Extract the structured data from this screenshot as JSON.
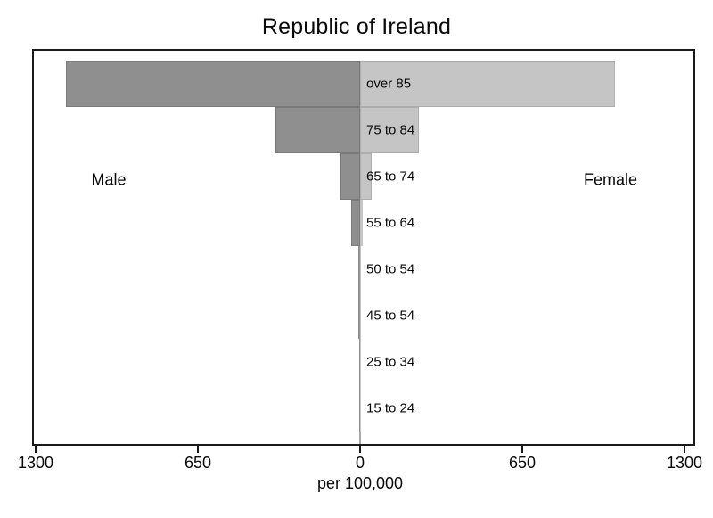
{
  "title": "Republic of Ireland",
  "chart_data": {
    "type": "bar",
    "subtype": "population-pyramid",
    "title": "Republic of Ireland",
    "categories": [
      "over 85",
      "75 to 84",
      "65 to 74",
      "55 to 64",
      "50 to 54",
      "45 to 54",
      "25 to 34",
      "15 to 24"
    ],
    "series": [
      {
        "name": "Male",
        "side": "left",
        "values": [
          1180,
          340,
          80,
          35,
          8,
          6,
          4,
          3
        ]
      },
      {
        "name": "Female",
        "side": "right",
        "values": [
          1020,
          235,
          45,
          12,
          4,
          3,
          2,
          2
        ]
      }
    ],
    "left_label": "Male",
    "right_label": "Female",
    "xlabel": "per 100,000",
    "xlim": [
      -1300,
      1300
    ],
    "x_ticks_signed": [
      -1300,
      -650,
      0,
      650,
      1300
    ],
    "x_tick_labels": [
      "1300",
      "650",
      "0",
      "650",
      "1300"
    ],
    "grid": false,
    "legend": "none",
    "colors": {
      "male_fill": "#8f8f8f",
      "male_border": "#7a7a7a",
      "female_fill": "#c5c5c5",
      "female_border": "#aeaeae",
      "axis": "#1a1a1a",
      "center_line": "#a8a8a8",
      "text": "#0a0a0a",
      "background": "#ffffff"
    }
  }
}
